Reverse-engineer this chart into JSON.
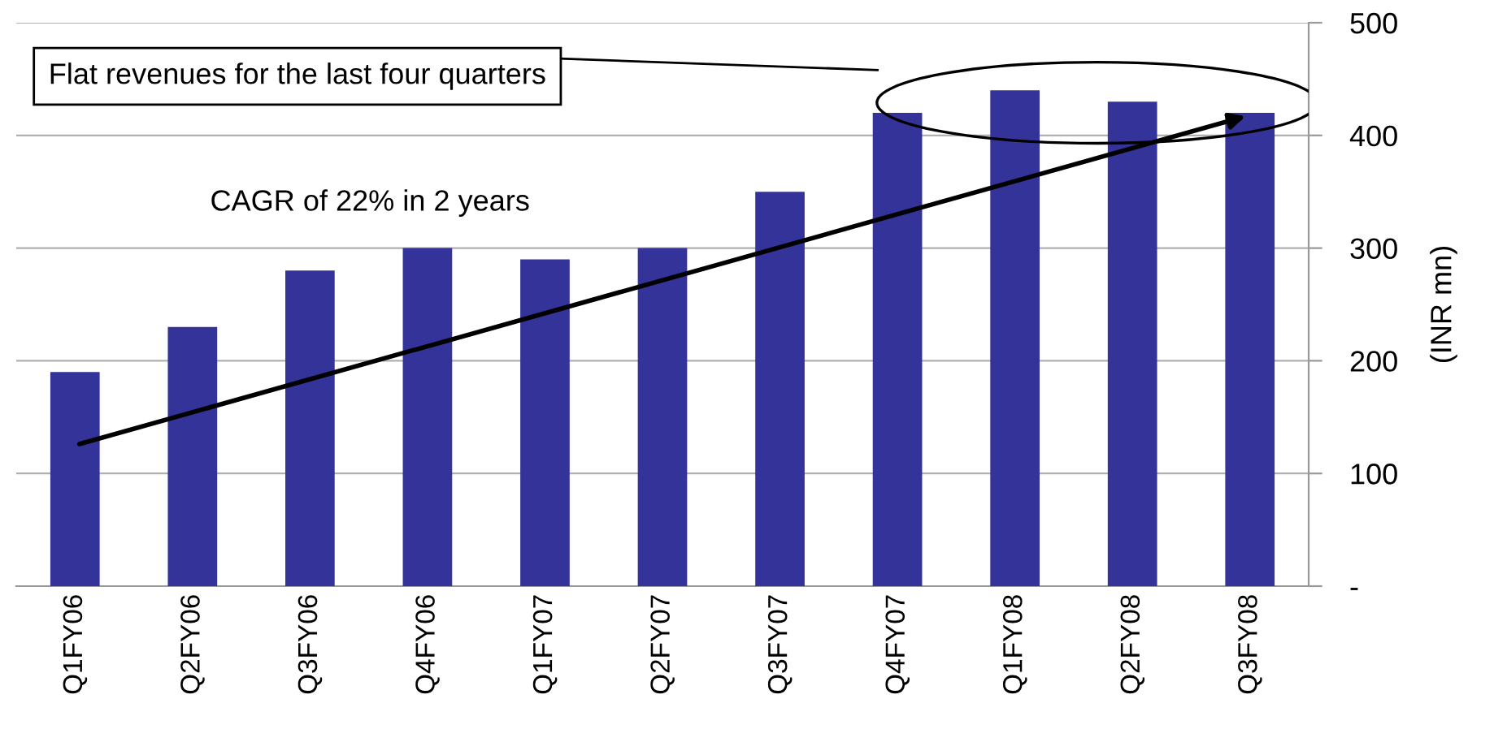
{
  "chart_data": {
    "type": "bar",
    "categories": [
      "Q1FY06",
      "Q2FY06",
      "Q3FY06",
      "Q4FY06",
      "Q1FY07",
      "Q2FY07",
      "Q3FY07",
      "Q4FY07",
      "Q1FY08",
      "Q2FY08",
      "Q3FY08"
    ],
    "values": [
      190,
      230,
      280,
      300,
      290,
      300,
      350,
      420,
      440,
      430,
      420
    ],
    "color": "#333399",
    "ylabel": "(INR mn)",
    "ylim": [
      0,
      500
    ],
    "yticks": [
      {
        "value": 0,
        "label": "-"
      },
      100,
      200,
      300,
      400,
      500
    ],
    "grid": "y",
    "annotations": [
      "Flat revenues for the last four quarters",
      "CAGR of 22% in 2 years"
    ]
  }
}
